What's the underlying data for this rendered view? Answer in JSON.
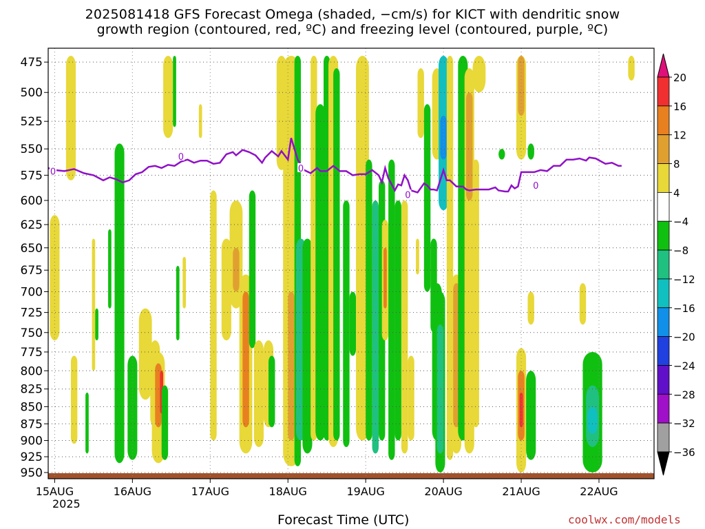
{
  "title_line1": "2025081418 GFS Forecast Omega (shaded, −cm/s) for KICT with dendritic snow",
  "title_line2": "growth region (contoured, red, ºC) and freezing level (contoured, purple, ºC)",
  "x_axis_label": "Forecast Time (UTC)",
  "credit": "coolwx.com/models",
  "year_label": "2025",
  "chart_data": {
    "type": "heatmap",
    "y_ticks": [
      475,
      500,
      525,
      550,
      575,
      600,
      625,
      650,
      675,
      700,
      725,
      750,
      775,
      800,
      825,
      850,
      875,
      900,
      925,
      950
    ],
    "y_range": [
      464,
      960
    ],
    "y_scale": "log-pressure (inverted)",
    "x_ticks": [
      "15AUG",
      "16AUG",
      "17AUG",
      "18AUG",
      "19AUG",
      "20AUG",
      "21AUG",
      "22AUG"
    ],
    "x_range_hours": [
      -2,
      185
    ],
    "grid": true,
    "colorbar": {
      "labels": [
        "20",
        "16",
        "12",
        "8",
        "4",
        "−4",
        "−8",
        "−12",
        "−16",
        "−20",
        "−24",
        "−28",
        "−32",
        "−36"
      ],
      "colors": [
        "#e0107a",
        "#f03030",
        "#e88020",
        "#e0a030",
        "#e8d838",
        "#ffffff",
        "#10c010",
        "#20c080",
        "#10c0c0",
        "#1090e8",
        "#2040e0",
        "#6010c8",
        "#a010c8",
        "#a0a0a0",
        "#000000"
      ]
    },
    "omega_regions": [
      {
        "t": 0,
        "p0": 615,
        "p1": 760,
        "w": 3,
        "c": "#e8d838"
      },
      {
        "t": 5,
        "p0": 470,
        "p1": 580,
        "w": 3,
        "c": "#e8d838"
      },
      {
        "t": 6,
        "p0": 780,
        "p1": 905,
        "w": 2,
        "c": "#e8d838"
      },
      {
        "t": 10,
        "p0": 830,
        "p1": 920,
        "w": 1,
        "c": "#10c010"
      },
      {
        "t": 12,
        "p0": 640,
        "p1": 800,
        "w": 1,
        "c": "#e8d838"
      },
      {
        "t": 13,
        "p0": 720,
        "p1": 760,
        "w": 1,
        "c": "#10c010"
      },
      {
        "t": 17,
        "p0": 630,
        "p1": 720,
        "w": 1,
        "c": "#10c010"
      },
      {
        "t": 20,
        "p0": 545,
        "p1": 935,
        "w": 3,
        "c": "#10c010"
      },
      {
        "t": 24,
        "p0": 780,
        "p1": 930,
        "w": 3,
        "c": "#10c010"
      },
      {
        "t": 28,
        "p0": 720,
        "p1": 840,
        "w": 4,
        "c": "#e8d838"
      },
      {
        "t": 31,
        "p0": 760,
        "p1": 880,
        "w": 3,
        "c": "#e8d838"
      },
      {
        "t": 32,
        "p0": 775,
        "p1": 935,
        "w": 4,
        "c": "#e8d838"
      },
      {
        "t": 32,
        "p0": 790,
        "p1": 880,
        "w": 2,
        "c": "#e88020"
      },
      {
        "t": 33,
        "p0": 800,
        "p1": 860,
        "w": 1,
        "c": "#f03030"
      },
      {
        "t": 34,
        "p0": 820,
        "p1": 930,
        "w": 2,
        "c": "#10c010"
      },
      {
        "t": 35,
        "p0": 470,
        "p1": 540,
        "w": 3,
        "c": "#e8d838"
      },
      {
        "t": 37,
        "p0": 470,
        "p1": 530,
        "w": 1,
        "c": "#10c010"
      },
      {
        "t": 38,
        "p0": 670,
        "p1": 760,
        "w": 1,
        "c": "#10c010"
      },
      {
        "t": 40,
        "p0": 660,
        "p1": 720,
        "w": 1,
        "c": "#e8d838"
      },
      {
        "t": 45,
        "p0": 510,
        "p1": 540,
        "w": 1,
        "c": "#e8d838"
      },
      {
        "t": 49,
        "p0": 590,
        "p1": 900,
        "w": 2,
        "c": "#e8d838"
      },
      {
        "t": 53,
        "p0": 640,
        "p1": 760,
        "w": 3,
        "c": "#e8d838"
      },
      {
        "t": 56,
        "p0": 600,
        "p1": 720,
        "w": 4,
        "c": "#e8d838"
      },
      {
        "t": 56,
        "p0": 650,
        "p1": 700,
        "w": 2,
        "c": "#e0a030"
      },
      {
        "t": 59,
        "p0": 680,
        "p1": 920,
        "w": 4,
        "c": "#e8d838"
      },
      {
        "t": 59,
        "p0": 700,
        "p1": 880,
        "w": 2,
        "c": "#e88020"
      },
      {
        "t": 61,
        "p0": 590,
        "p1": 770,
        "w": 2,
        "c": "#10c010"
      },
      {
        "t": 63,
        "p0": 760,
        "p1": 910,
        "w": 3,
        "c": "#e8d838"
      },
      {
        "t": 66,
        "p0": 760,
        "p1": 880,
        "w": 3,
        "c": "#e8d838"
      },
      {
        "t": 67,
        "p0": 780,
        "p1": 880,
        "w": 2,
        "c": "#10c010"
      },
      {
        "t": 70,
        "p0": 470,
        "p1": 570,
        "w": 3,
        "c": "#e8d838"
      },
      {
        "t": 73,
        "p0": 470,
        "p1": 940,
        "w": 5,
        "c": "#e8d838"
      },
      {
        "t": 73,
        "p0": 700,
        "p1": 900,
        "w": 2,
        "c": "#e0a030"
      },
      {
        "t": 75,
        "p0": 470,
        "p1": 940,
        "w": 2,
        "c": "#10c010"
      },
      {
        "t": 76,
        "p0": 640,
        "p1": 900,
        "w": 3,
        "c": "#20c080"
      },
      {
        "t": 78,
        "p0": 640,
        "p1": 920,
        "w": 3,
        "c": "#10c010"
      },
      {
        "t": 80,
        "p0": 470,
        "p1": 900,
        "w": 2,
        "c": "#e8d838"
      },
      {
        "t": 82,
        "p0": 510,
        "p1": 900,
        "w": 3,
        "c": "#10c010"
      },
      {
        "t": 84,
        "p0": 470,
        "p1": 900,
        "w": 2,
        "c": "#10c010"
      },
      {
        "t": 86,
        "p0": 470,
        "p1": 910,
        "w": 3,
        "c": "#e8d838"
      },
      {
        "t": 87,
        "p0": 480,
        "p1": 900,
        "w": 2,
        "c": "#10c010"
      },
      {
        "t": 90,
        "p0": 600,
        "p1": 910,
        "w": 2,
        "c": "#10c010"
      },
      {
        "t": 92,
        "p0": 700,
        "p1": 780,
        "w": 2,
        "c": "#10c010"
      },
      {
        "t": 95,
        "p0": 470,
        "p1": 900,
        "w": 4,
        "c": "#e8d838"
      },
      {
        "t": 97,
        "p0": 560,
        "p1": 900,
        "w": 2,
        "c": "#10c010"
      },
      {
        "t": 99,
        "p0": 600,
        "p1": 920,
        "w": 2,
        "c": "#20c080"
      },
      {
        "t": 101,
        "p0": 580,
        "p1": 900,
        "w": 2,
        "c": "#10c010"
      },
      {
        "t": 102,
        "p0": 620,
        "p1": 760,
        "w": 2,
        "c": "#e8d838"
      },
      {
        "t": 102,
        "p0": 650,
        "p1": 720,
        "w": 1,
        "c": "#e88020"
      },
      {
        "t": 104,
        "p0": 560,
        "p1": 930,
        "w": 2,
        "c": "#10c010"
      },
      {
        "t": 106,
        "p0": 600,
        "p1": 900,
        "w": 2,
        "c": "#10c010"
      },
      {
        "t": 108,
        "p0": 600,
        "p1": 920,
        "w": 2,
        "c": "#e8d838"
      },
      {
        "t": 110,
        "p0": 780,
        "p1": 900,
        "w": 2,
        "c": "#e8d838"
      },
      {
        "t": 112,
        "p0": 640,
        "p1": 680,
        "w": 1,
        "c": "#e8d838"
      },
      {
        "t": 113,
        "p0": 480,
        "p1": 540,
        "w": 2,
        "c": "#e8d838"
      },
      {
        "t": 115,
        "p0": 510,
        "p1": 700,
        "w": 2,
        "c": "#10c010"
      },
      {
        "t": 117,
        "p0": 640,
        "p1": 750,
        "w": 2,
        "c": "#10c010"
      },
      {
        "t": 118,
        "p0": 480,
        "p1": 560,
        "w": 3,
        "c": "#e8d838"
      },
      {
        "t": 118,
        "p0": 690,
        "p1": 900,
        "w": 3,
        "c": "#10c010"
      },
      {
        "t": 119,
        "p0": 700,
        "p1": 950,
        "w": 3,
        "c": "#10c010"
      },
      {
        "t": 119,
        "p0": 740,
        "p1": 920,
        "w": 2,
        "c": "#20c080"
      },
      {
        "t": 120,
        "p0": 470,
        "p1": 610,
        "w": 3,
        "c": "#10c0c0"
      },
      {
        "t": 120,
        "p0": 520,
        "p1": 560,
        "w": 2,
        "c": "#1090e8"
      },
      {
        "t": 122,
        "p0": 470,
        "p1": 930,
        "w": 2,
        "c": "#e8d838"
      },
      {
        "t": 124,
        "p0": 680,
        "p1": 920,
        "w": 3,
        "c": "#e8d838"
      },
      {
        "t": 124,
        "p0": 690,
        "p1": 880,
        "w": 2,
        "c": "#e0a030"
      },
      {
        "t": 126,
        "p0": 470,
        "p1": 900,
        "w": 3,
        "c": "#10c010"
      },
      {
        "t": 128,
        "p0": 480,
        "p1": 920,
        "w": 3,
        "c": "#e8d838"
      },
      {
        "t": 128,
        "p0": 500,
        "p1": 600,
        "w": 2,
        "c": "#e0a030"
      },
      {
        "t": 130,
        "p0": 560,
        "p1": 880,
        "w": 2,
        "c": "#e8d838"
      },
      {
        "t": 131,
        "p0": 470,
        "p1": 500,
        "w": 4,
        "c": "#e8d838"
      },
      {
        "t": 138,
        "p0": 550,
        "p1": 560,
        "w": 2,
        "c": "#10c010"
      },
      {
        "t": 144,
        "p0": 470,
        "p1": 560,
        "w": 3,
        "c": "#e8d838"
      },
      {
        "t": 144,
        "p0": 470,
        "p1": 520,
        "w": 2,
        "c": "#e0a030"
      },
      {
        "t": 144,
        "p0": 770,
        "p1": 950,
        "w": 3,
        "c": "#e8d838"
      },
      {
        "t": 144,
        "p0": 800,
        "p1": 900,
        "w": 2,
        "c": "#e88020"
      },
      {
        "t": 144,
        "p0": 830,
        "p1": 880,
        "w": 1,
        "c": "#f03030"
      },
      {
        "t": 147,
        "p0": 800,
        "p1": 930,
        "w": 3,
        "c": "#10c010"
      },
      {
        "t": 147,
        "p0": 700,
        "p1": 740,
        "w": 2,
        "c": "#e8d838"
      },
      {
        "t": 147,
        "p0": 545,
        "p1": 560,
        "w": 2,
        "c": "#10c010"
      },
      {
        "t": 163,
        "p0": 690,
        "p1": 740,
        "w": 2,
        "c": "#e8d838"
      },
      {
        "t": 166,
        "p0": 775,
        "p1": 950,
        "w": 6,
        "c": "#10c010"
      },
      {
        "t": 166,
        "p0": 820,
        "p1": 910,
        "w": 4,
        "c": "#20c080"
      },
      {
        "t": 166,
        "p0": 850,
        "p1": 890,
        "w": 3,
        "c": "#10c0c0"
      },
      {
        "t": 178,
        "p0": 470,
        "p1": 490,
        "w": 2,
        "c": "#e8d838"
      }
    ],
    "freezing_level": {
      "label": "0",
      "points": [
        [
          -2,
          568
        ],
        [
          0,
          570
        ],
        [
          3,
          571
        ],
        [
          6,
          569
        ],
        [
          9,
          573
        ],
        [
          12,
          575
        ],
        [
          15,
          580
        ],
        [
          17,
          577
        ],
        [
          19,
          579
        ],
        [
          21,
          582
        ],
        [
          23,
          580
        ],
        [
          25,
          574
        ],
        [
          27,
          572
        ],
        [
          29,
          567
        ],
        [
          31,
          566
        ],
        [
          33,
          568
        ],
        [
          35,
          565
        ],
        [
          37,
          566
        ],
        [
          39,
          562
        ],
        [
          41,
          560
        ],
        [
          43,
          563
        ],
        [
          45,
          561
        ],
        [
          47,
          561
        ],
        [
          49,
          564
        ],
        [
          51,
          563
        ],
        [
          53,
          555
        ],
        [
          55,
          553
        ],
        [
          56,
          556
        ],
        [
          58,
          551
        ],
        [
          60,
          553
        ],
        [
          62,
          556
        ],
        [
          64,
          563
        ],
        [
          65,
          558
        ],
        [
          67,
          552
        ],
        [
          69,
          557
        ],
        [
          70,
          552
        ],
        [
          72,
          560
        ],
        [
          73,
          540
        ],
        [
          75,
          560
        ],
        [
          77,
          570
        ],
        [
          79,
          573
        ],
        [
          81,
          568
        ],
        [
          82,
          571
        ],
        [
          84,
          571
        ],
        [
          86,
          566
        ],
        [
          88,
          571
        ],
        [
          90,
          571
        ],
        [
          92,
          575
        ],
        [
          94,
          574
        ],
        [
          96,
          574
        ],
        [
          98,
          570
        ],
        [
          100,
          575
        ],
        [
          101,
          582
        ],
        [
          102,
          568
        ],
        [
          103,
          578
        ],
        [
          105,
          590
        ],
        [
          106,
          584
        ],
        [
          107,
          585
        ],
        [
          108,
          575
        ],
        [
          109,
          580
        ],
        [
          110,
          590
        ],
        [
          112,
          592
        ],
        [
          114,
          583
        ],
        [
          115,
          585
        ],
        [
          116,
          589
        ],
        [
          117,
          589
        ],
        [
          118,
          590
        ],
        [
          119,
          580
        ],
        [
          120,
          570
        ],
        [
          121,
          580
        ],
        [
          122,
          580
        ],
        [
          124,
          586
        ],
        [
          126,
          586
        ],
        [
          127,
          589
        ],
        [
          128,
          590
        ],
        [
          130,
          589
        ],
        [
          132,
          589
        ],
        [
          134,
          589
        ],
        [
          136,
          587
        ],
        [
          137,
          590
        ],
        [
          139,
          591
        ],
        [
          140,
          591
        ],
        [
          141,
          585
        ],
        [
          142,
          588
        ],
        [
          143,
          586
        ],
        [
          144,
          572
        ],
        [
          146,
          572
        ],
        [
          148,
          572
        ],
        [
          150,
          570
        ],
        [
          152,
          571
        ],
        [
          154,
          566
        ],
        [
          156,
          566
        ],
        [
          158,
          560
        ],
        [
          160,
          560
        ],
        [
          162,
          559
        ],
        [
          164,
          561
        ],
        [
          165,
          558
        ],
        [
          167,
          559
        ],
        [
          170,
          564
        ],
        [
          172,
          563
        ],
        [
          174,
          566
        ],
        [
          175,
          566
        ]
      ]
    },
    "contour_labels": [
      {
        "t": -0.5,
        "p": 571
      },
      {
        "t": 39,
        "p": 557
      },
      {
        "t": 76,
        "p": 568
      },
      {
        "t": 109,
        "p": 594
      },
      {
        "t": 148.5,
        "p": 585
      }
    ]
  }
}
